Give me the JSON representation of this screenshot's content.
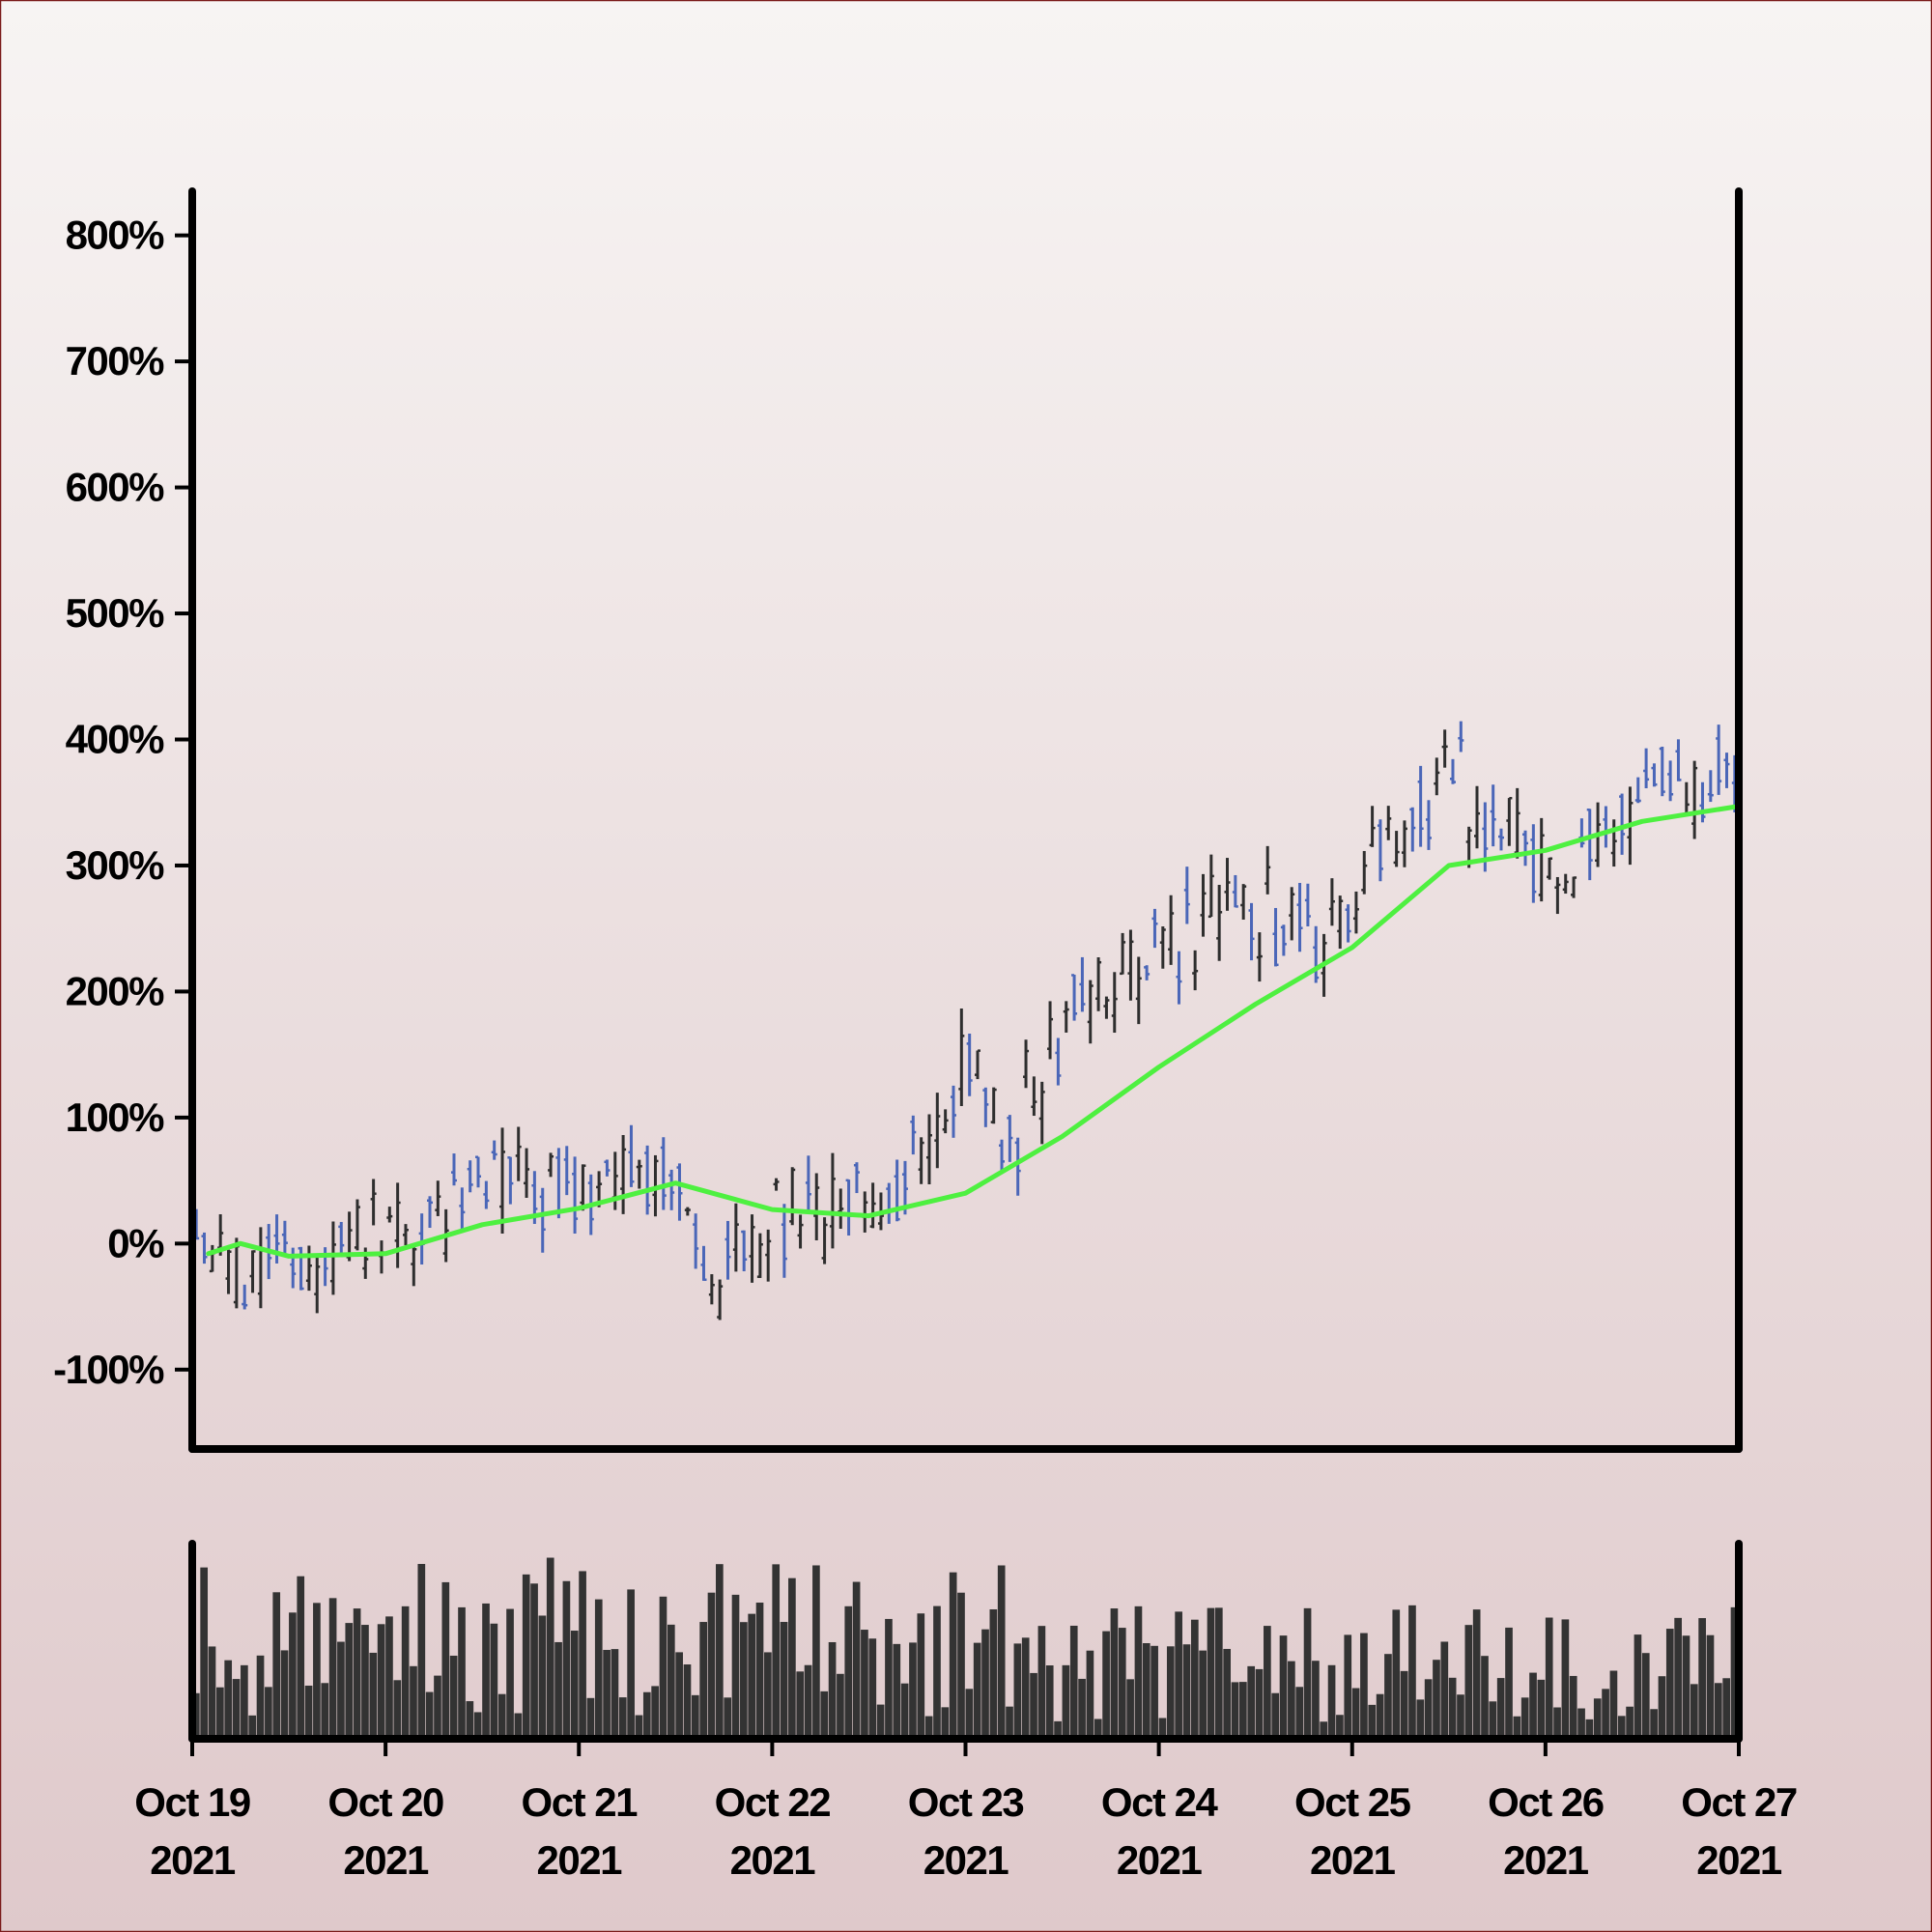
{
  "chart_data": {
    "type": "ohlc",
    "x_axis": {
      "type": "time",
      "range": [
        "2021-10-19",
        "2021-10-27"
      ],
      "ticks": [
        {
          "date": "2021-10-19",
          "line1": "Oct 19",
          "line2": "2021"
        },
        {
          "date": "2021-10-20",
          "line1": "Oct 20",
          "line2": "2021"
        },
        {
          "date": "2021-10-21",
          "line1": "Oct 21",
          "line2": "2021"
        },
        {
          "date": "2021-10-22",
          "line1": "Oct 22",
          "line2": "2021"
        },
        {
          "date": "2021-10-23",
          "line1": "Oct 23",
          "line2": "2021"
        },
        {
          "date": "2021-10-24",
          "line1": "Oct 24",
          "line2": "2021"
        },
        {
          "date": "2021-10-25",
          "line1": "Oct 25",
          "line2": "2021"
        },
        {
          "date": "2021-10-26",
          "line1": "Oct 26",
          "line2": "2021"
        },
        {
          "date": "2021-10-27",
          "line1": "Oct 27",
          "line2": "2021"
        }
      ]
    },
    "y_axis": {
      "unit": "%",
      "range": [
        -163,
        835
      ],
      "ticks": [
        -100,
        0,
        100,
        200,
        300,
        400,
        500,
        600,
        700,
        800
      ],
      "tick_labels": [
        "-100%",
        "0%",
        "100%",
        "200%",
        "300%",
        "400%",
        "500%",
        "600%",
        "700%",
        "800%"
      ]
    },
    "bars_per_day": 24,
    "grid": false,
    "legend": "none",
    "colors": {
      "up": "#2e2e2e",
      "down": "#4a66b8",
      "moving_average": "#4ef040",
      "volume": "#333333",
      "background_top": "#f7f4f3",
      "background_bottom": "#dfc9cb",
      "frame_border": "#7a1a1a"
    },
    "price_trend_anchors": [
      {
        "date": "2021-10-19T00:00",
        "value": -5
      },
      {
        "date": "2021-10-19T12:00",
        "value": -10
      },
      {
        "date": "2021-10-20T00:00",
        "value": 5
      },
      {
        "date": "2021-10-20T12:00",
        "value": 55
      },
      {
        "date": "2021-10-21T00:00",
        "value": 40
      },
      {
        "date": "2021-10-21T12:00",
        "value": 65
      },
      {
        "date": "2021-10-21T18:00",
        "value": -40
      },
      {
        "date": "2021-10-22T00:00",
        "value": 15
      },
      {
        "date": "2021-10-22T12:00",
        "value": 30
      },
      {
        "date": "2021-10-22T18:00",
        "value": 75
      },
      {
        "date": "2021-10-23T00:00",
        "value": 140
      },
      {
        "date": "2021-10-23T06:00",
        "value": 90
      },
      {
        "date": "2021-10-23T12:00",
        "value": 180
      },
      {
        "date": "2021-10-24T00:00",
        "value": 225
      },
      {
        "date": "2021-10-24T09:00",
        "value": 270
      },
      {
        "date": "2021-10-24T21:00",
        "value": 240
      },
      {
        "date": "2021-10-25T06:00",
        "value": 330
      },
      {
        "date": "2021-10-25T12:00",
        "value": 370
      },
      {
        "date": "2021-10-26T00:00",
        "value": 290
      },
      {
        "date": "2021-10-26T06:00",
        "value": 320
      },
      {
        "date": "2021-10-26T12:00",
        "value": 360
      },
      {
        "date": "2021-10-27T00:00",
        "value": 370
      }
    ],
    "moving_average": [
      {
        "date": "2021-10-19T02:00",
        "value": -8
      },
      {
        "date": "2021-10-19T06:00",
        "value": 0
      },
      {
        "date": "2021-10-19T12:00",
        "value": -10
      },
      {
        "date": "2021-10-20T00:00",
        "value": -8
      },
      {
        "date": "2021-10-20T12:00",
        "value": 15
      },
      {
        "date": "2021-10-21T00:00",
        "value": 28
      },
      {
        "date": "2021-10-21T12:00",
        "value": 48
      },
      {
        "date": "2021-10-22T00:00",
        "value": 27
      },
      {
        "date": "2021-10-22T12:00",
        "value": 22
      },
      {
        "date": "2021-10-23T00:00",
        "value": 40
      },
      {
        "date": "2021-10-23T12:00",
        "value": 85
      },
      {
        "date": "2021-10-24T00:00",
        "value": 140
      },
      {
        "date": "2021-10-24T12:00",
        "value": 190
      },
      {
        "date": "2021-10-25T00:00",
        "value": 235
      },
      {
        "date": "2021-10-25T12:00",
        "value": 300
      },
      {
        "date": "2021-10-26T00:00",
        "value": 312
      },
      {
        "date": "2021-10-26T12:00",
        "value": 335
      },
      {
        "date": "2021-10-27T00:00",
        "value": 347
      }
    ],
    "volume": {
      "relative_max": 1.0,
      "typical_level": 0.45
    }
  }
}
